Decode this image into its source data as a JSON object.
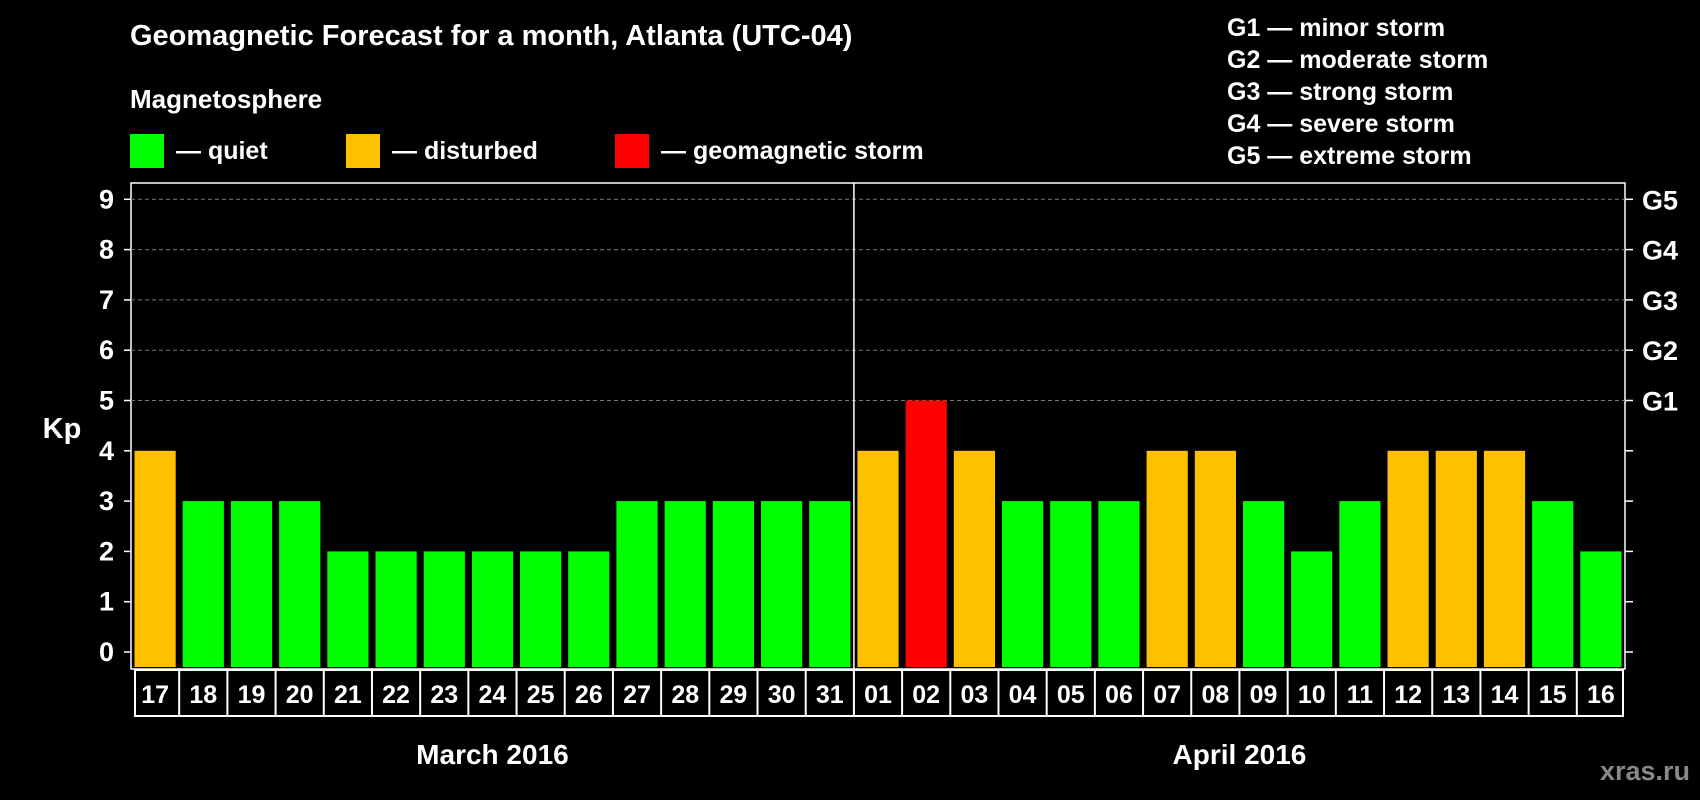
{
  "title": "Geomagnetic Forecast for a month, Atlanta (UTC-04)",
  "legend": {
    "heading": "Magnetosphere",
    "items": [
      {
        "label": "— quiet",
        "color": "#00ff00"
      },
      {
        "label": "— disturbed",
        "color": "#ffc000"
      },
      {
        "label": "— geomagnetic storm",
        "color": "#ff0000"
      }
    ]
  },
  "storm_scale": [
    "G1 — minor storm",
    "G2 — moderate storm",
    "G3 — strong storm",
    "G4 — severe storm",
    "G5 — extreme storm"
  ],
  "watermark": "xras.ru",
  "chart_data": {
    "type": "bar",
    "ylabel": "Kp",
    "ylim": [
      0,
      9
    ],
    "yticks": [
      "0",
      "1",
      "2",
      "3",
      "4",
      "5",
      "6",
      "7",
      "8",
      "9"
    ],
    "right_labels": [
      {
        "value": 5,
        "label": "G1"
      },
      {
        "value": 6,
        "label": "G2"
      },
      {
        "value": 7,
        "label": "G3"
      },
      {
        "value": 8,
        "label": "G4"
      },
      {
        "value": 9,
        "label": "G5"
      }
    ],
    "categories": [
      "17",
      "18",
      "19",
      "20",
      "21",
      "22",
      "23",
      "24",
      "25",
      "26",
      "27",
      "28",
      "29",
      "30",
      "31",
      "01",
      "02",
      "03",
      "04",
      "05",
      "06",
      "07",
      "08",
      "09",
      "10",
      "11",
      "12",
      "13",
      "14",
      "15",
      "16"
    ],
    "values": [
      4,
      3,
      3,
      3,
      2,
      2,
      2,
      2,
      2,
      2,
      3,
      3,
      3,
      3,
      3,
      4,
      5,
      4,
      3,
      3,
      3,
      4,
      4,
      3,
      2,
      3,
      4,
      4,
      4,
      3,
      2
    ],
    "status": [
      "disturbed",
      "quiet",
      "quiet",
      "quiet",
      "quiet",
      "quiet",
      "quiet",
      "quiet",
      "quiet",
      "quiet",
      "quiet",
      "quiet",
      "quiet",
      "quiet",
      "quiet",
      "disturbed",
      "storm",
      "disturbed",
      "quiet",
      "quiet",
      "quiet",
      "disturbed",
      "disturbed",
      "quiet",
      "quiet",
      "quiet",
      "disturbed",
      "disturbed",
      "disturbed",
      "quiet",
      "quiet"
    ],
    "colors": {
      "quiet": "#00ff00",
      "disturbed": "#ffc000",
      "storm": "#ff0000"
    },
    "months": [
      {
        "label": "March 2016",
        "start": 0,
        "end": 14
      },
      {
        "label": "April 2016",
        "start": 15,
        "end": 30
      }
    ],
    "month_divider_after_index": 14,
    "grid": "dashed at 5-9"
  }
}
